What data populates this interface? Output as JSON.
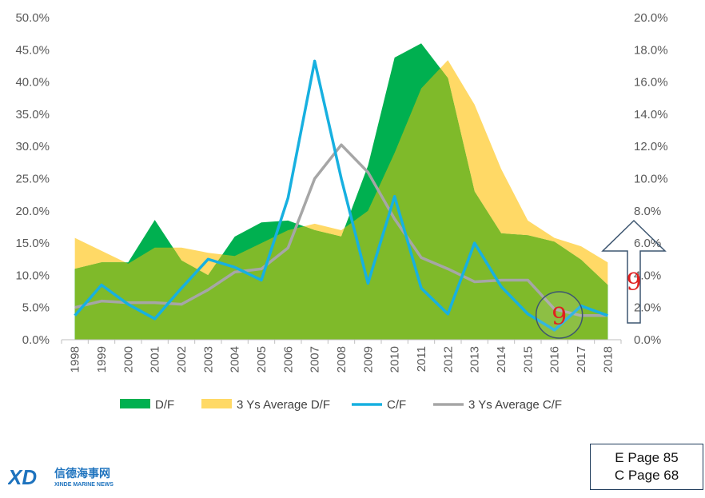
{
  "chart_data": {
    "type": "area",
    "categories": [
      "1998",
      "1999",
      "2000",
      "2001",
      "2002",
      "2003",
      "2004",
      "2005",
      "2006",
      "2007",
      "2008",
      "2009",
      "2010",
      "2011",
      "2012",
      "2013",
      "2014",
      "2015",
      "2016",
      "2017",
      "2018"
    ],
    "y_left": {
      "ylim": [
        0,
        50
      ],
      "ticks": [
        "0.0%",
        "5.0%",
        "10.0%",
        "15.0%",
        "20.0%",
        "25.0%",
        "30.0%",
        "35.0%",
        "40.0%",
        "45.0%",
        "50.0%"
      ]
    },
    "y_right": {
      "ylim": [
        0,
        20
      ],
      "ticks": [
        "0.0%",
        "2.0%",
        "4.0%",
        "6.0%",
        "8.0%",
        "10.0%",
        "12.0%",
        "14.0%",
        "16.0%",
        "18.0%",
        "20.0%"
      ]
    },
    "series": [
      {
        "name": "D/F",
        "kind": "area",
        "axis": "left",
        "color": "#00b050",
        "values": [
          11.0,
          12.0,
          12.0,
          18.6,
          12.3,
          10.0,
          16.0,
          18.2,
          18.5,
          17.0,
          16.0,
          27.0,
          43.8,
          46.0,
          40.6,
          23.0,
          16.5,
          16.2,
          15.2,
          12.4,
          8.5
        ]
      },
      {
        "name": "3 Ys Average D/F",
        "kind": "area",
        "axis": "left",
        "color": "#ffd966",
        "values": [
          15.8,
          13.8,
          11.8,
          14.3,
          14.3,
          13.5,
          13.0,
          15.0,
          17.0,
          18.0,
          17.0,
          20.0,
          29.0,
          39.0,
          43.4,
          36.5,
          26.5,
          18.5,
          15.8,
          14.5,
          12.0
        ]
      },
      {
        "name": "C/F",
        "kind": "line",
        "axis": "right",
        "color": "#17b0e0",
        "values": [
          1.5,
          3.4,
          2.2,
          1.3,
          3.2,
          5.0,
          4.5,
          3.7,
          8.8,
          17.3,
          10.0,
          3.5,
          8.9,
          3.2,
          1.6,
          6.0,
          3.3,
          1.6,
          0.6,
          2.1,
          1.5
        ]
      },
      {
        "name": "3 Ys Average C/F",
        "kind": "line",
        "axis": "right",
        "color": "#a6a6a6",
        "values": [
          2.0,
          2.4,
          2.3,
          2.3,
          2.2,
          3.1,
          4.2,
          4.4,
          5.7,
          10.0,
          12.1,
          10.4,
          7.5,
          5.1,
          4.4,
          3.6,
          3.7,
          3.7,
          1.9,
          1.5,
          1.5
        ]
      }
    ],
    "legend_position": "bottom",
    "grid": false,
    "annotations": [
      {
        "text": "9",
        "near": "2016",
        "style": "circled"
      },
      {
        "text": "9",
        "near": "right-axis",
        "style": "hollow-up-arrow"
      }
    ]
  },
  "page_ref": {
    "line1": "E Page 85",
    "line2": "C Page 68"
  },
  "logo": {
    "mark": "XD",
    "cn": "信德海事网",
    "en": "XINDE MARINE NEWS"
  }
}
